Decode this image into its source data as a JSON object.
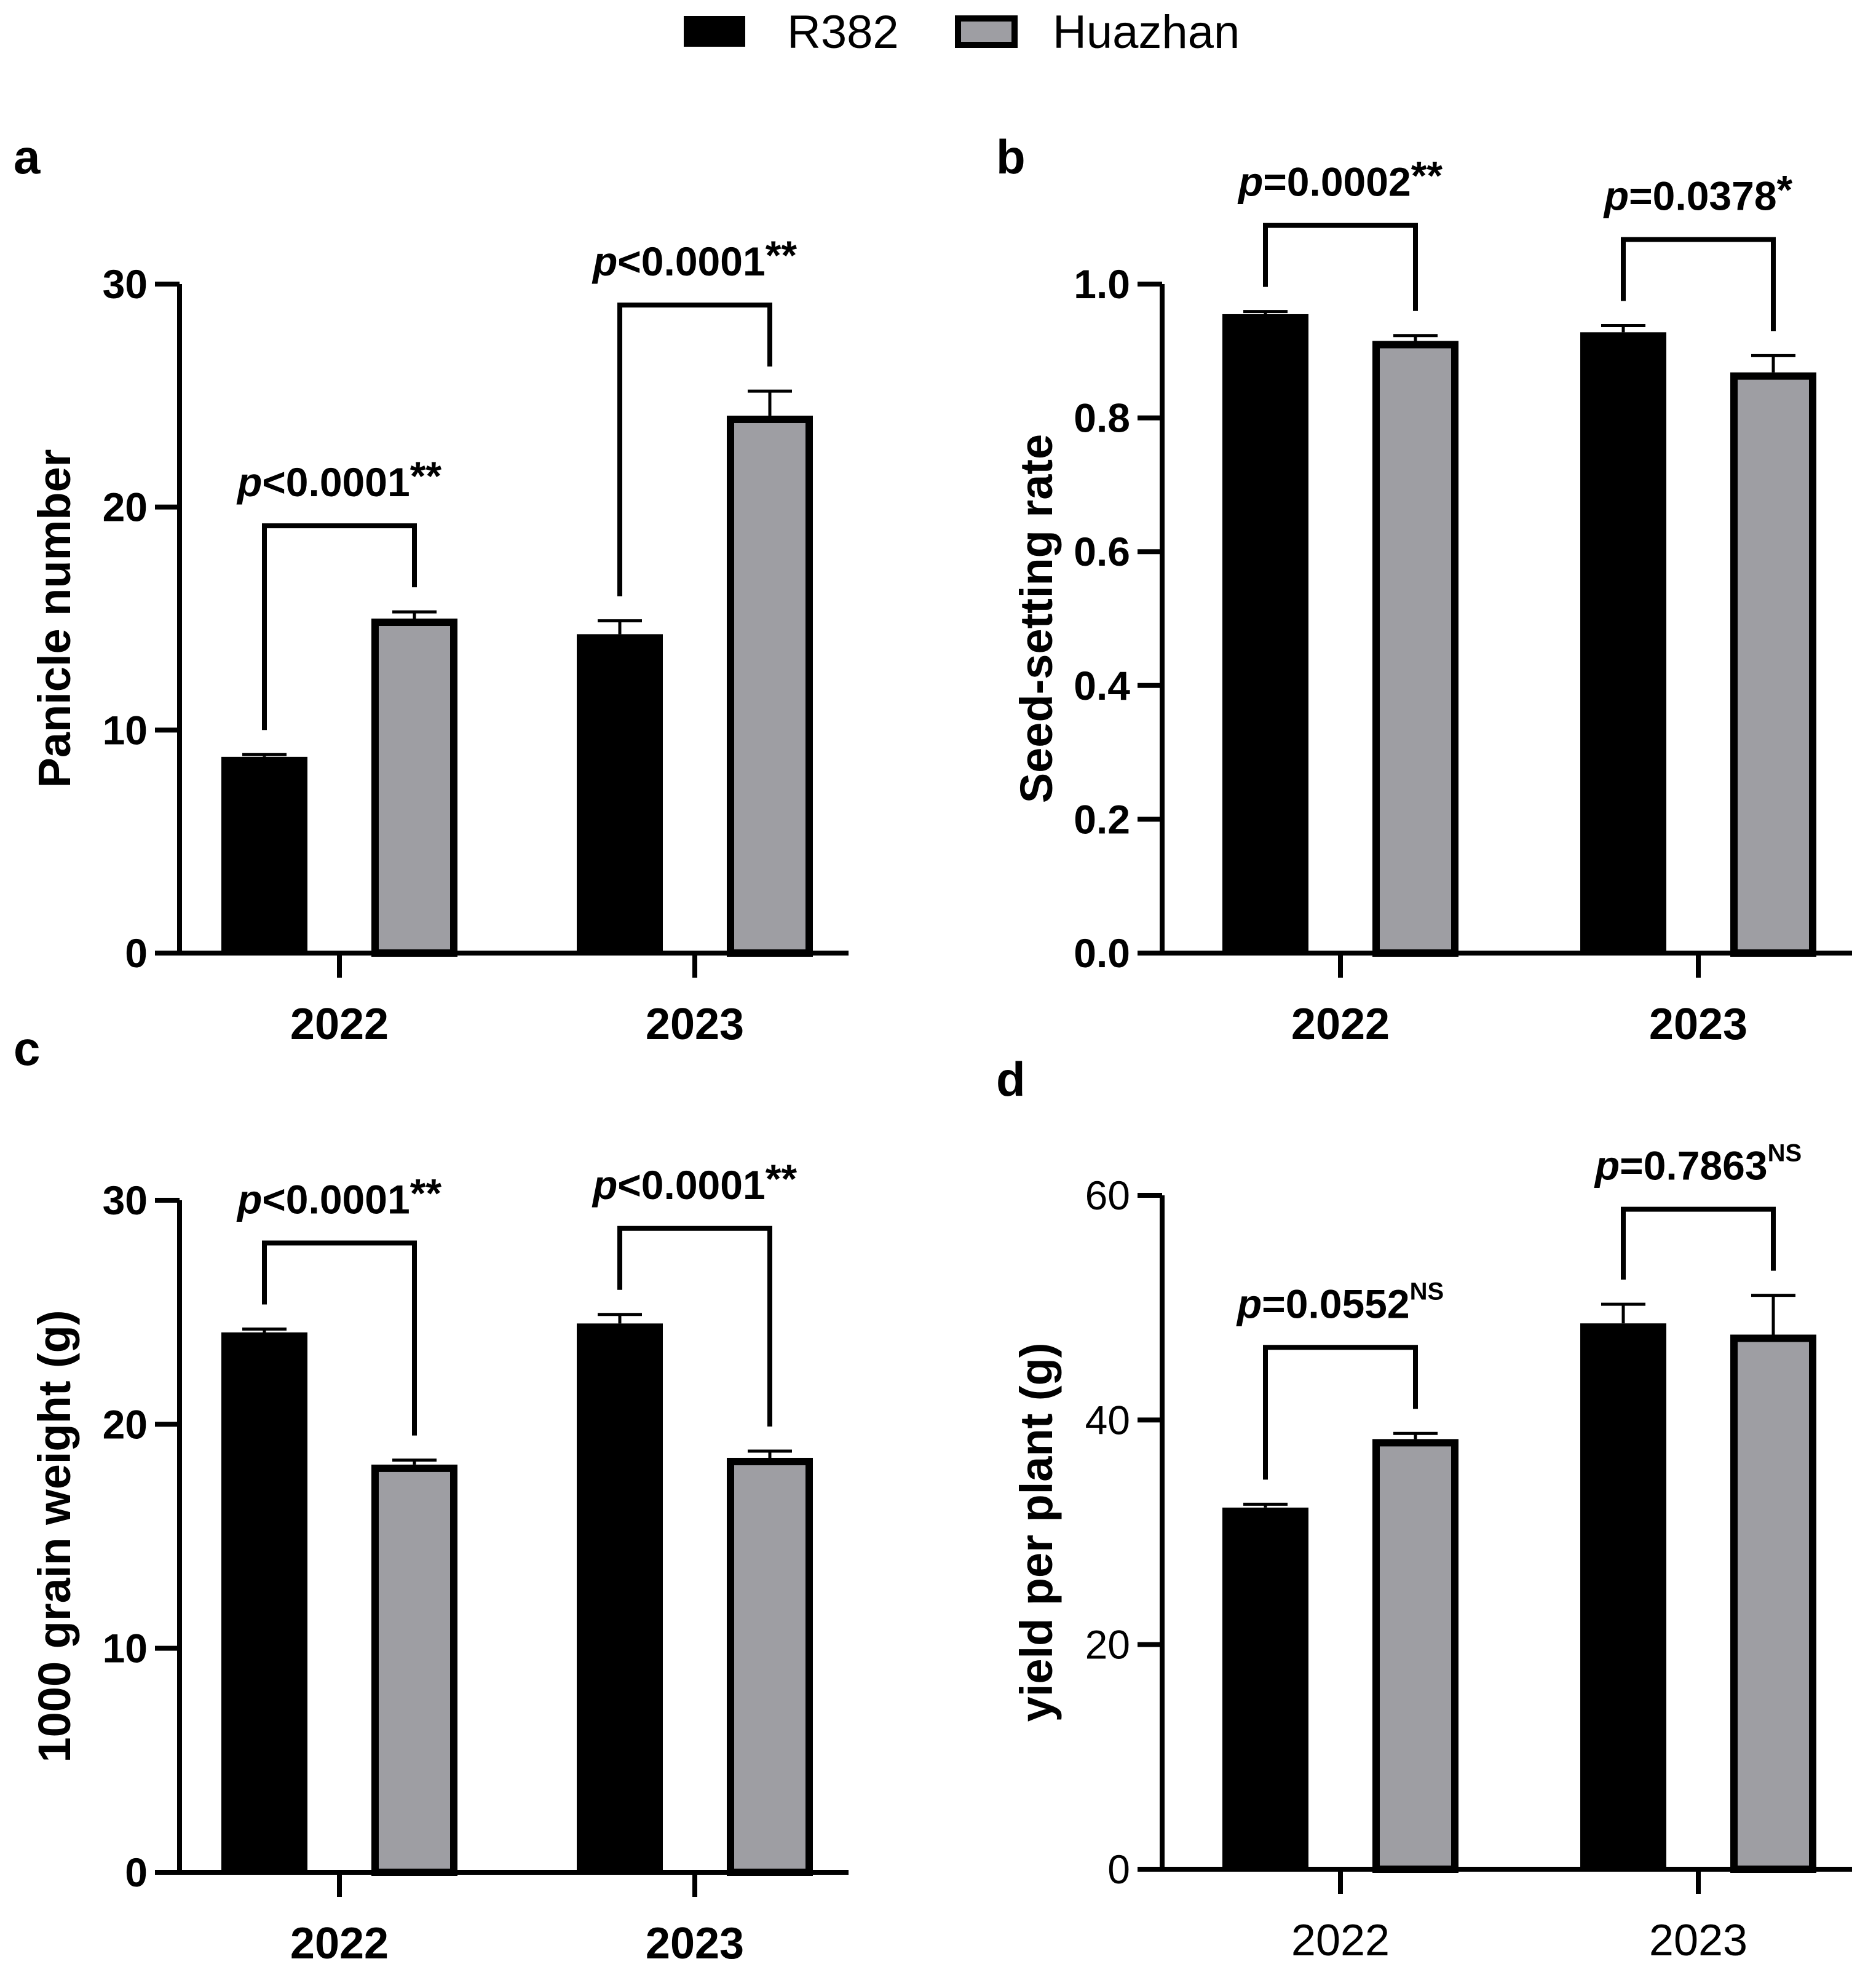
{
  "colors": {
    "r382": "#000000",
    "huazhan": "#9e9ea3",
    "outline": "#000000",
    "background": "#ffffff"
  },
  "legend": {
    "items": [
      {
        "label": "R382",
        "color": "#000000"
      },
      {
        "label": "Huazhan",
        "color": "#9e9ea3"
      }
    ]
  },
  "chart_data": [
    {
      "panel": "a",
      "type": "bar",
      "ylabel": "Panicle number",
      "ylim": [
        0,
        30
      ],
      "yticks": [
        "0",
        "10",
        "20",
        "30"
      ],
      "categories": [
        "2022",
        "2023"
      ],
      "series": [
        {
          "name": "R382",
          "values": [
            8.8,
            14.3
          ],
          "errors": [
            0.1,
            0.6
          ]
        },
        {
          "name": "Huazhan",
          "values": [
            15.0,
            24.1
          ],
          "errors": [
            0.3,
            1.1
          ]
        }
      ],
      "annotations": [
        {
          "category": "2022",
          "p": "p",
          "text": "<0.0001",
          "sig": "**",
          "superscript": false
        },
        {
          "category": "2023",
          "p": "p",
          "text": "<0.0001",
          "sig": "**",
          "superscript": false
        }
      ]
    },
    {
      "panel": "b",
      "type": "bar",
      "ylabel": "Seed-setting rate",
      "ylim": [
        0,
        1.0
      ],
      "yticks": [
        "0.0",
        "0.2",
        "0.4",
        "0.6",
        "0.8",
        "1.0"
      ],
      "categories": [
        "2022",
        "2023"
      ],
      "series": [
        {
          "name": "R382",
          "values": [
            0.955,
            0.928
          ],
          "errors": [
            0.004,
            0.01
          ]
        },
        {
          "name": "Huazhan",
          "values": [
            0.915,
            0.868
          ],
          "errors": [
            0.008,
            0.025
          ]
        }
      ],
      "annotations": [
        {
          "category": "2022",
          "p": "p",
          "text": "=0.0002",
          "sig": "**",
          "superscript": false
        },
        {
          "category": "2023",
          "p": "p",
          "text": "=0.0378",
          "sig": "*",
          "superscript": false
        }
      ]
    },
    {
      "panel": "c",
      "type": "bar",
      "ylabel": "1000 grain weight (g)",
      "ylim": [
        0,
        30
      ],
      "yticks": [
        "0",
        "10",
        "20",
        "30"
      ],
      "categories": [
        "2022",
        "2023"
      ],
      "series": [
        {
          "name": "R382",
          "values": [
            24.1,
            24.5
          ],
          "errors": [
            0.15,
            0.4
          ]
        },
        {
          "name": "Huazhan",
          "values": [
            18.2,
            18.5
          ],
          "errors": [
            0.2,
            0.3
          ]
        }
      ],
      "annotations": [
        {
          "category": "2022",
          "p": "p",
          "text": "<0.0001",
          "sig": "**",
          "superscript": false
        },
        {
          "category": "2023",
          "p": "p",
          "text": "<0.0001",
          "sig": "**",
          "superscript": false
        }
      ]
    },
    {
      "panel": "d",
      "type": "bar",
      "ylabel": "yield per plant (g)",
      "ylim": [
        0,
        60
      ],
      "yticks": [
        "0",
        "20",
        "40",
        "60"
      ],
      "categories": [
        "2022",
        "2023"
      ],
      "series": [
        {
          "name": "R382",
          "values": [
            32.2,
            48.6
          ],
          "errors": [
            0.3,
            1.7
          ]
        },
        {
          "name": "Huazhan",
          "values": [
            38.3,
            47.6
          ],
          "errors": [
            0.5,
            3.5
          ]
        }
      ],
      "annotations": [
        {
          "category": "2022",
          "p": "p",
          "text": "=0.0552",
          "sig": "NS",
          "superscript": true
        },
        {
          "category": "2023",
          "p": "p",
          "text": "=0.7863",
          "sig": "NS",
          "superscript": true
        }
      ]
    }
  ]
}
